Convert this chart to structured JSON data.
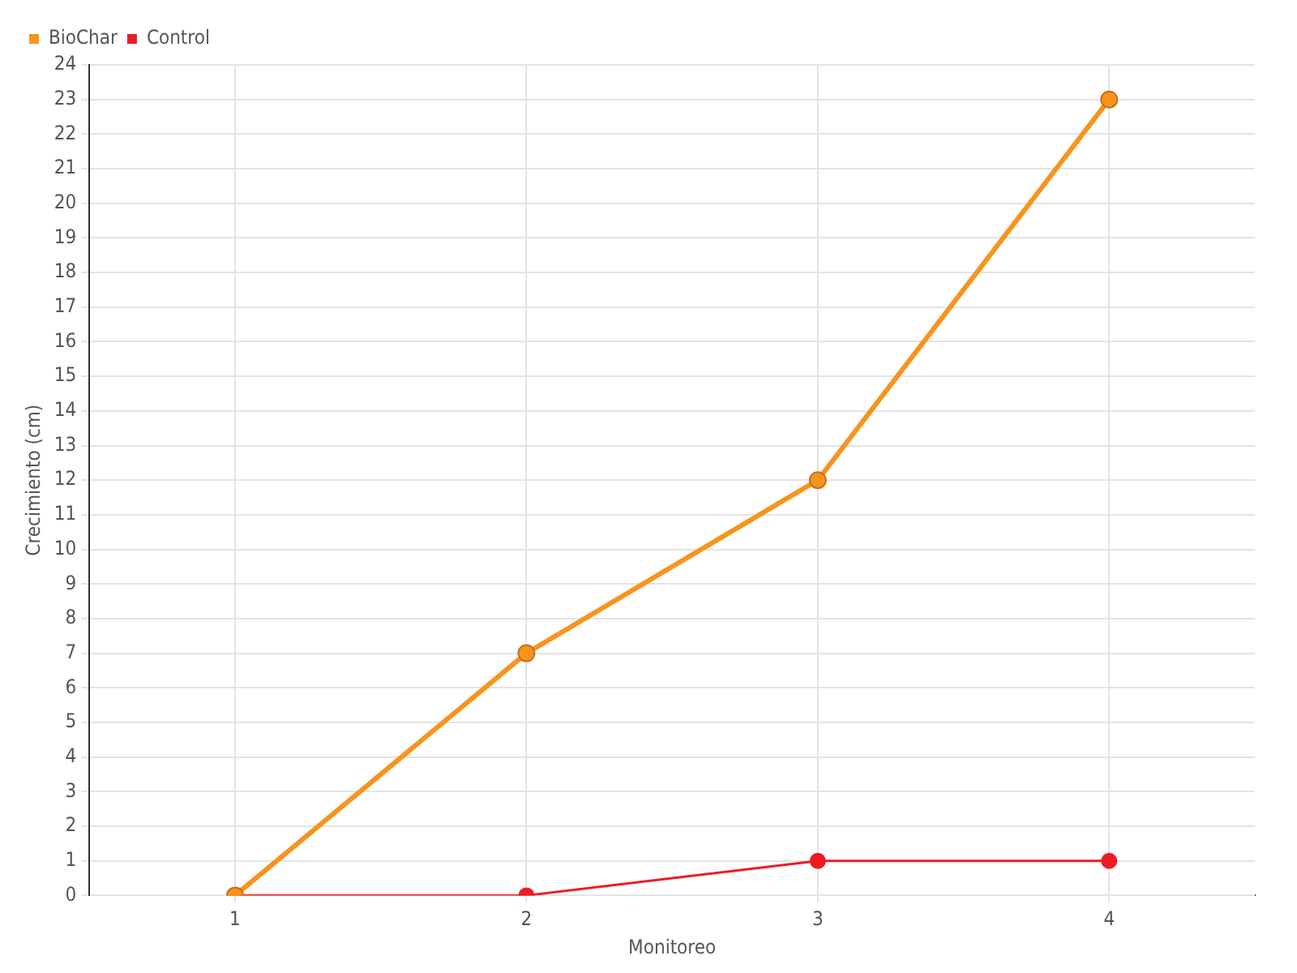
{
  "chart_data": {
    "type": "line",
    "xlabel": "Monitoreo",
    "ylabel": "Crecimiento (cm)",
    "categories": [
      "1",
      "2",
      "3",
      "4"
    ],
    "series": [
      {
        "name": "BioChar",
        "color": "#f7941d",
        "values": [
          0,
          7,
          12,
          23
        ]
      },
      {
        "name": "Control",
        "color": "#ed1c24",
        "values": [
          0,
          0,
          1,
          1
        ]
      }
    ],
    "ylim": [
      0,
      24
    ],
    "yticks": [
      0,
      1,
      2,
      3,
      4,
      5,
      6,
      7,
      8,
      9,
      10,
      11,
      12,
      13,
      14,
      15,
      16,
      17,
      18,
      19,
      20,
      21,
      22,
      23,
      24
    ],
    "grid": true,
    "legend": "top left",
    "marker": "circle",
    "line_style": "solid"
  }
}
